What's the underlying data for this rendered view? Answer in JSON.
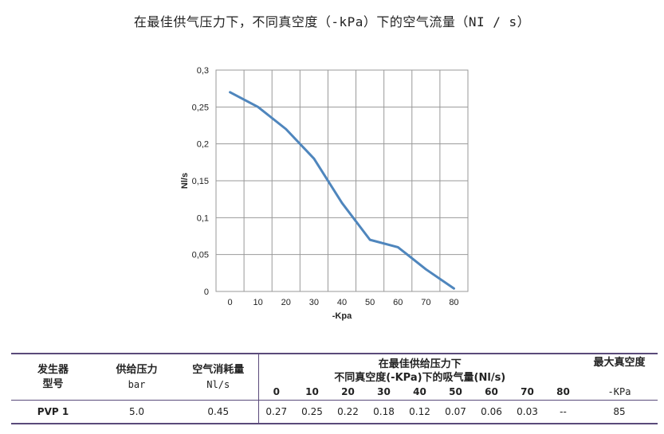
{
  "title": "在最佳供气压力下，不同真空度（-kPa）下的空气流量（NI / s）",
  "chart_data": {
    "type": "line",
    "x": [
      0,
      10,
      20,
      30,
      40,
      50,
      60,
      70,
      80
    ],
    "series": [
      {
        "values": [
          0.27,
          0.25,
          0.22,
          0.18,
          0.12,
          0.07,
          0.06,
          0.03,
          0.004
        ]
      }
    ],
    "xlabel": "-Kpa",
    "ylabel": "Nl/s",
    "xlim": [
      -5,
      85
    ],
    "ylim": [
      0,
      0.3
    ],
    "x_ticks": [
      "0",
      "10",
      "20",
      "30",
      "40",
      "50",
      "60",
      "70",
      "80"
    ],
    "y_ticks": [
      "0",
      "0,05",
      "0,1",
      "0,15",
      "0,2",
      "0,25",
      "0,3"
    ],
    "grid": true,
    "line_color": "#4f86bd"
  },
  "table": {
    "col_generator_l1": "发生器",
    "col_generator_l2": "型号",
    "col_pressure": "供给压力",
    "col_pressure_unit": "bar",
    "col_air": "空气消耗量",
    "col_air_unit": "Nl/s",
    "col_flow_l1": "在最佳供给压力下",
    "col_flow_l2": "不同真空度(-KPa)下的吸气量(Nl/s)",
    "col_maxvac": "最大真空度",
    "col_maxvac_unit": "-KPa",
    "pressures": [
      "0",
      "10",
      "20",
      "30",
      "40",
      "50",
      "60",
      "70",
      "80"
    ],
    "row": {
      "model": "PVP 1",
      "pressure": "5.0",
      "air": "0.45",
      "flows": [
        "0.27",
        "0.25",
        "0.22",
        "0.18",
        "0.12",
        "0.07",
        "0.06",
        "0.03",
        "--"
      ],
      "maxvac": "85"
    }
  }
}
